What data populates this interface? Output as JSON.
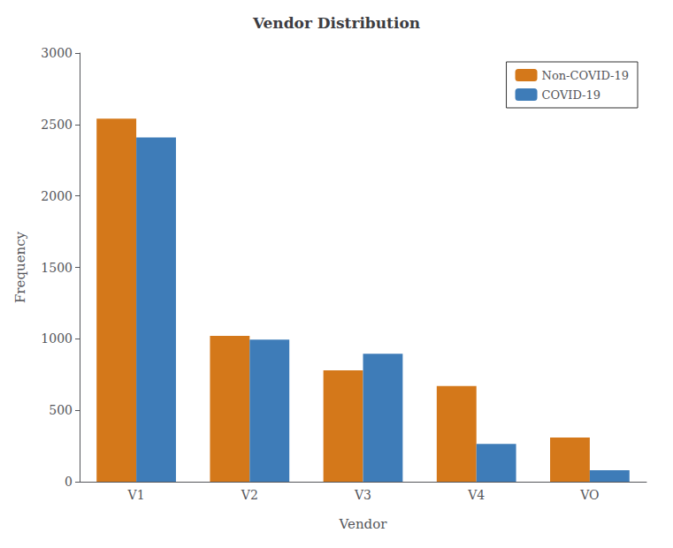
{
  "chart_data": {
    "type": "bar",
    "title": "Vendor Distribution",
    "xlabel": "Vendor",
    "ylabel": "Frequency",
    "categories": [
      "V1",
      "V2",
      "V3",
      "V4",
      "VO"
    ],
    "series": [
      {
        "name": "Non-COVID-19",
        "color": "#D4781A",
        "values": [
          2540,
          1020,
          780,
          670,
          310
        ]
      },
      {
        "name": "COVID-19",
        "color": "#3E7CB8",
        "values": [
          2410,
          995,
          895,
          265,
          80
        ]
      }
    ],
    "ylim": [
      0,
      3000
    ],
    "yticks": [
      0,
      500,
      1000,
      1500,
      2000,
      2500,
      3000
    ],
    "grid": false,
    "legend": "upper right"
  }
}
